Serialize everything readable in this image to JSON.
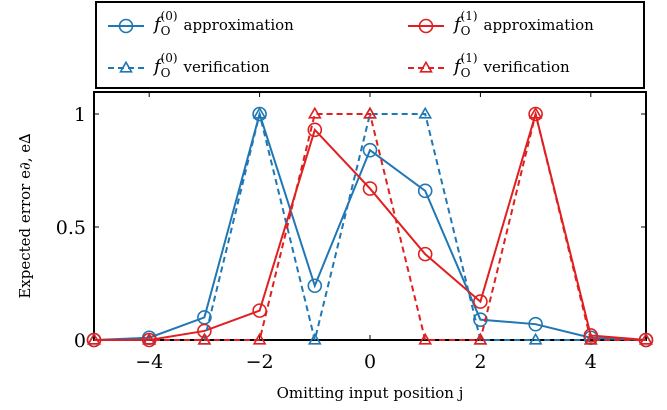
{
  "chart_data": {
    "type": "line",
    "xlabel": "Omitting input position j",
    "ylabel": "Expected error e∂, e∆",
    "xlim": [
      -5,
      5
    ],
    "ylim": [
      0,
      1
    ],
    "x_ticks": [
      -4,
      -2,
      0,
      2,
      4
    ],
    "x_tick_labels": [
      "−4",
      "−2",
      "0",
      "2",
      "4"
    ],
    "y_ticks": [
      0,
      0.5,
      1
    ],
    "y_tick_labels": [
      "0",
      "0.5",
      "1"
    ],
    "grid": false,
    "legend_position": "top",
    "x": [
      -5,
      -4,
      -3,
      -2,
      -1,
      0,
      1,
      2,
      3,
      4,
      5
    ],
    "series": [
      {
        "name": "f_O^(0) approximation",
        "label_main": "f",
        "label_sub": "O",
        "label_sup": "(0)",
        "label_suffix": "approximation",
        "color": "#1f77b4",
        "line_style": "solid",
        "marker": "circle",
        "values": [
          0,
          0.01,
          0.1,
          1,
          0.24,
          0.84,
          0.66,
          0.09,
          0.07,
          0.01,
          0
        ]
      },
      {
        "name": "f_O^(1) approximation",
        "label_main": "f",
        "label_sub": "O",
        "label_sup": "(1)",
        "label_suffix": "approximation",
        "color": "#e02020",
        "line_style": "solid",
        "marker": "circle",
        "values": [
          0,
          0,
          0.04,
          0.13,
          0.93,
          0.67,
          0.38,
          0.17,
          1,
          0.02,
          0
        ]
      },
      {
        "name": "f_O^(0) verification",
        "label_main": "f",
        "label_sub": "O",
        "label_sup": "(0)",
        "label_suffix": "verification",
        "color": "#1f77b4",
        "line_style": "dashed",
        "marker": "triangle",
        "values": [
          0,
          0,
          0,
          1,
          0,
          1,
          1,
          0,
          0,
          0,
          0
        ]
      },
      {
        "name": "f_O^(1) verification",
        "label_main": "f",
        "label_sub": "O",
        "label_sup": "(1)",
        "label_suffix": "verification",
        "color": "#e02020",
        "line_style": "dashed",
        "marker": "triangle",
        "values": [
          0,
          0,
          0,
          0,
          1,
          1,
          0,
          0,
          1,
          0,
          0
        ]
      }
    ]
  }
}
